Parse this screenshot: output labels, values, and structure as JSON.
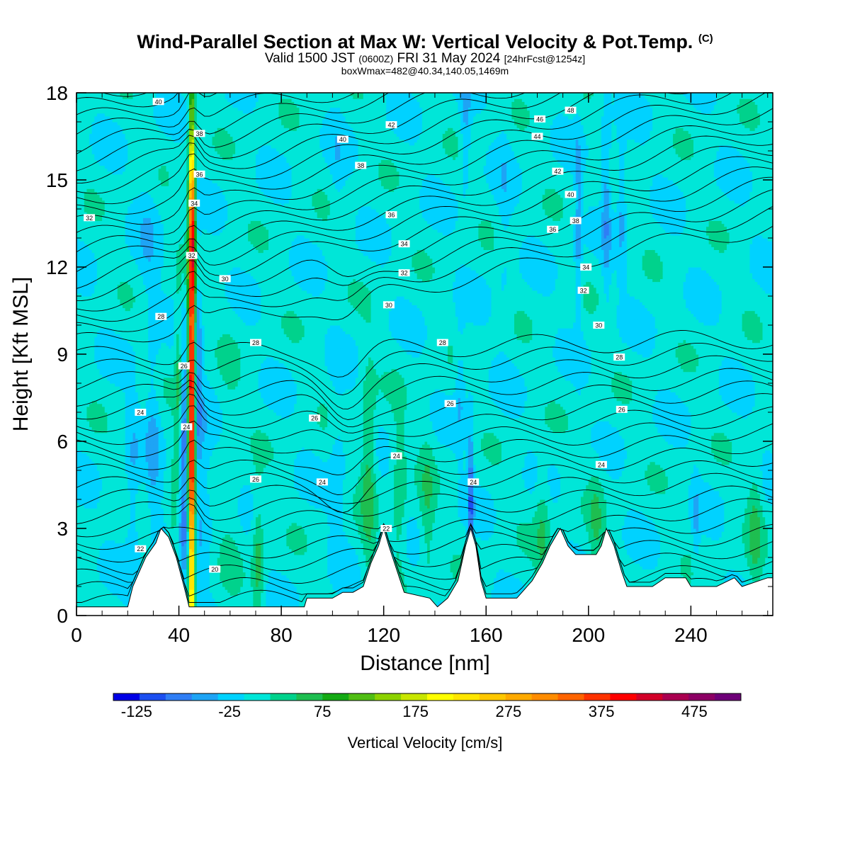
{
  "header": {
    "title_main": "Wind-Parallel Section at Max W: Vertical Velocity & Pot.Temp.",
    "title_mark": "(C)",
    "subtitle_a": "Valid 1500 JST",
    "subtitle_b": "(0600Z)",
    "subtitle_c": "FRI 31 May 2024",
    "subtitle_d": "[24hrFcst@1254z]",
    "subtitle2": "boxWmax=482@40.34,140.05,1469m"
  },
  "chart_data": {
    "type": "heatmap",
    "xlabel": "Distance [nm]",
    "ylabel": "Height [Kft MSL]",
    "xlim": [
      0,
      272
    ],
    "ylim": [
      0,
      18
    ],
    "x_ticks": [
      0,
      40,
      80,
      120,
      160,
      200,
      240
    ],
    "y_ticks": [
      0,
      3,
      6,
      9,
      12,
      15,
      18
    ],
    "background_w": 0,
    "colorbar": {
      "label": "Vertical Velocity [cm/s]",
      "tick_values": [
        -125,
        -25,
        75,
        175,
        275,
        375,
        475
      ],
      "tick_labels": [
        "-125",
        "-25",
        "75",
        "175",
        "275",
        "375",
        "475"
      ],
      "min": -150,
      "max": 525,
      "colors": [
        "#0000e6",
        "#1c4ff0",
        "#2f7ef5",
        "#1ea4f5",
        "#00d2ff",
        "#00e6d8",
        "#00d28c",
        "#1ebe50",
        "#14aa14",
        "#50be14",
        "#8cd200",
        "#c8e600",
        "#ffff00",
        "#ffe600",
        "#ffc800",
        "#ffaa00",
        "#ff8c00",
        "#ff6400",
        "#ff3200",
        "#ff0000",
        "#d20028",
        "#aa0050",
        "#8c0064",
        "#6e0078"
      ]
    },
    "terrain": [
      [
        0,
        0.3
      ],
      [
        20,
        0.3
      ],
      [
        22,
        1.0
      ],
      [
        25,
        1.6
      ],
      [
        27,
        2.0
      ],
      [
        31,
        2.5
      ],
      [
        33,
        3.0
      ],
      [
        36,
        2.7
      ],
      [
        39,
        2.0
      ],
      [
        42,
        1.0
      ],
      [
        44,
        0.3
      ],
      [
        50,
        0.3
      ],
      [
        89,
        0.3
      ],
      [
        90,
        0.6
      ],
      [
        100,
        0.6
      ],
      [
        104,
        0.8
      ],
      [
        108,
        0.8
      ],
      [
        112,
        1.0
      ],
      [
        115,
        1.8
      ],
      [
        118,
        2.4
      ],
      [
        120,
        3.0
      ],
      [
        122,
        2.4
      ],
      [
        125,
        1.6
      ],
      [
        128,
        0.8
      ],
      [
        138,
        0.6
      ],
      [
        141,
        0.3
      ],
      [
        145,
        0.6
      ],
      [
        149,
        1.2
      ],
      [
        152,
        2.4
      ],
      [
        154,
        3.0
      ],
      [
        156,
        2.4
      ],
      [
        158,
        1.2
      ],
      [
        160,
        0.6
      ],
      [
        172,
        0.6
      ],
      [
        178,
        1.2
      ],
      [
        182,
        1.8
      ],
      [
        185,
        2.4
      ],
      [
        189,
        3.0
      ],
      [
        192,
        2.4
      ],
      [
        195,
        2.1
      ],
      [
        203,
        2.1
      ],
      [
        205,
        2.4
      ],
      [
        207,
        3.0
      ],
      [
        210,
        2.4
      ],
      [
        213,
        1.5
      ],
      [
        215,
        1.0
      ],
      [
        225,
        1.0
      ],
      [
        230,
        1.3
      ],
      [
        238,
        1.3
      ],
      [
        240,
        1.0
      ],
      [
        250,
        1.0
      ],
      [
        257,
        1.3
      ],
      [
        260,
        1.0
      ],
      [
        270,
        1.3
      ],
      [
        272,
        1.3
      ]
    ],
    "updrafts": [
      {
        "x": 45,
        "y": 7.5,
        "sx": 0.8,
        "sy": 6.5,
        "w": 440
      },
      {
        "x": 45.3,
        "y": 13.5,
        "sx": 0.7,
        "sy": 1.5,
        "w": 150
      },
      {
        "x": 44,
        "y": 9,
        "sx": 2.0,
        "sy": 3.5,
        "w": 40
      },
      {
        "x": 40,
        "y": 8.5,
        "sx": 1.0,
        "sy": 2.0,
        "w": 60
      },
      {
        "x": 42,
        "y": 6.0,
        "sx": 1.2,
        "sy": 3.0,
        "w": -110
      },
      {
        "x": 47.5,
        "y": 8.0,
        "sx": 1.0,
        "sy": 3.0,
        "w": -70
      },
      {
        "x": 30,
        "y": 6.0,
        "sx": 2.0,
        "sy": 2.5,
        "w": -40
      },
      {
        "x": 22,
        "y": 4.0,
        "sx": 2.0,
        "sy": 2.5,
        "w": -35
      },
      {
        "x": 50,
        "y": 4.0,
        "sx": 2.0,
        "sy": 2.5,
        "w": -35
      },
      {
        "x": 71,
        "y": 2.0,
        "sx": 1.5,
        "sy": 1.6,
        "w": 60
      },
      {
        "x": 102,
        "y": 5.0,
        "sx": 2.2,
        "sy": 2.0,
        "w": -30
      },
      {
        "x": 114,
        "y": 5.0,
        "sx": 2.0,
        "sy": 2.5,
        "w": 60
      },
      {
        "x": 126,
        "y": 4.0,
        "sx": 2.0,
        "sy": 2.0,
        "w": 45
      },
      {
        "x": 137,
        "y": 3.5,
        "sx": 2.0,
        "sy": 2.0,
        "w": 40
      },
      {
        "x": 154,
        "y": 4.0,
        "sx": 0.8,
        "sy": 2.0,
        "w": -90
      },
      {
        "x": 150,
        "y": 8.0,
        "sx": 1.5,
        "sy": 1.5,
        "w": -40
      },
      {
        "x": 152,
        "y": 17.0,
        "sx": 1.5,
        "sy": 1.5,
        "w": -45
      },
      {
        "x": 196,
        "y": 13.0,
        "sx": 1.0,
        "sy": 2.5,
        "w": -50
      },
      {
        "x": 207,
        "y": 14.5,
        "sx": 1.2,
        "sy": 2.5,
        "w": -55
      },
      {
        "x": 213,
        "y": 14.5,
        "sx": 1.2,
        "sy": 2.0,
        "w": -45
      },
      {
        "x": 167,
        "y": 14.0,
        "sx": 2.0,
        "sy": 3.0,
        "w": -20
      },
      {
        "x": 182,
        "y": 3.0,
        "sx": 2.0,
        "sy": 1.5,
        "w": 45
      },
      {
        "x": 203,
        "y": 3.0,
        "sx": 2.0,
        "sy": 1.5,
        "w": 40
      },
      {
        "x": 265,
        "y": 3.0,
        "sx": 2.0,
        "sy": 1.5,
        "w": 50
      },
      {
        "x": 242,
        "y": 3.0,
        "sx": 1.0,
        "sy": 1.2,
        "w": -35
      },
      {
        "x": 60,
        "y": 5.0,
        "sx": 3.0,
        "sy": 3.0,
        "w": 20
      },
      {
        "x": 38,
        "y": 3.0,
        "sx": 1.5,
        "sy": 2.0,
        "w": 40
      },
      {
        "x": 28,
        "y": 13.0,
        "sx": 3.0,
        "sy": 2.0,
        "w": -25
      },
      {
        "x": 102,
        "y": 15.5,
        "sx": 2.0,
        "sy": 1.5,
        "w": -20
      }
    ],
    "isentrope_labels": [
      {
        "x": 32,
        "y": 17.7,
        "text": "40"
      },
      {
        "x": 48,
        "y": 16.6,
        "text": "38"
      },
      {
        "x": 48,
        "y": 15.2,
        "text": "36"
      },
      {
        "x": 46,
        "y": 14.2,
        "text": "34"
      },
      {
        "x": 45,
        "y": 12.4,
        "text": "32"
      },
      {
        "x": 5,
        "y": 13.7,
        "text": "32"
      },
      {
        "x": 58,
        "y": 11.6,
        "text": "30"
      },
      {
        "x": 33,
        "y": 10.3,
        "text": "28"
      },
      {
        "x": 42,
        "y": 8.6,
        "text": "26"
      },
      {
        "x": 43,
        "y": 6.5,
        "text": "24"
      },
      {
        "x": 25,
        "y": 7.0,
        "text": "24"
      },
      {
        "x": 70,
        "y": 9.4,
        "text": "28"
      },
      {
        "x": 70,
        "y": 4.7,
        "text": "26"
      },
      {
        "x": 25,
        "y": 2.3,
        "text": "22"
      },
      {
        "x": 54,
        "y": 1.6,
        "text": "20"
      },
      {
        "x": 104,
        "y": 16.4,
        "text": "40"
      },
      {
        "x": 111,
        "y": 15.5,
        "text": "38"
      },
      {
        "x": 123,
        "y": 16.9,
        "text": "42"
      },
      {
        "x": 123,
        "y": 13.8,
        "text": "36"
      },
      {
        "x": 128,
        "y": 12.8,
        "text": "34"
      },
      {
        "x": 128,
        "y": 11.8,
        "text": "32"
      },
      {
        "x": 122,
        "y": 10.7,
        "text": "30"
      },
      {
        "x": 143,
        "y": 9.4,
        "text": "28"
      },
      {
        "x": 146,
        "y": 7.3,
        "text": "26"
      },
      {
        "x": 93,
        "y": 6.8,
        "text": "26"
      },
      {
        "x": 96,
        "y": 4.6,
        "text": "24"
      },
      {
        "x": 125,
        "y": 5.5,
        "text": "24"
      },
      {
        "x": 121,
        "y": 3.0,
        "text": "22"
      },
      {
        "x": 155,
        "y": 4.6,
        "text": "24"
      },
      {
        "x": 180,
        "y": 16.5,
        "text": "44"
      },
      {
        "x": 181,
        "y": 17.1,
        "text": "46"
      },
      {
        "x": 193,
        "y": 17.4,
        "text": "48"
      },
      {
        "x": 188,
        "y": 15.3,
        "text": "42"
      },
      {
        "x": 193,
        "y": 14.5,
        "text": "40"
      },
      {
        "x": 195,
        "y": 13.6,
        "text": "38"
      },
      {
        "x": 186,
        "y": 13.3,
        "text": "36"
      },
      {
        "x": 199,
        "y": 12.0,
        "text": "34"
      },
      {
        "x": 198,
        "y": 11.2,
        "text": "32"
      },
      {
        "x": 204,
        "y": 10.0,
        "text": "30"
      },
      {
        "x": 212,
        "y": 8.9,
        "text": "28"
      },
      {
        "x": 213,
        "y": 7.1,
        "text": "26"
      },
      {
        "x": 205,
        "y": 5.2,
        "text": "24"
      }
    ]
  }
}
